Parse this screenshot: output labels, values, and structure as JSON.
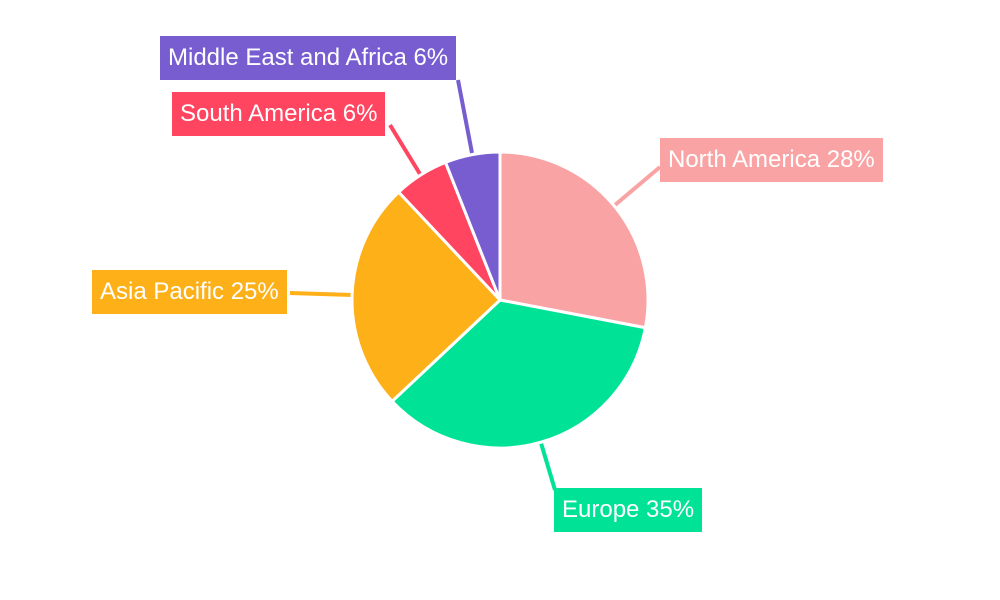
{
  "chart_data": {
    "type": "pie",
    "title": "",
    "start_angle": "top",
    "direction": "clockwise",
    "legend": "none",
    "slices": [
      {
        "label": "North America",
        "value": 28,
        "text": "North America 28%",
        "color": "#F9A3A4"
      },
      {
        "label": "Europe",
        "value": 35,
        "text": "Europe 35%",
        "color": "#00E396"
      },
      {
        "label": "Asia Pacific",
        "value": 25,
        "text": "Asia Pacific 25%",
        "color": "#FEB019"
      },
      {
        "label": "South America",
        "value": 6,
        "text": "South America 6%",
        "color": "#FF4560"
      },
      {
        "label": "Middle East and Africa",
        "value": 6,
        "text": "Middle East and Africa 6%",
        "color": "#775DD0"
      }
    ]
  }
}
